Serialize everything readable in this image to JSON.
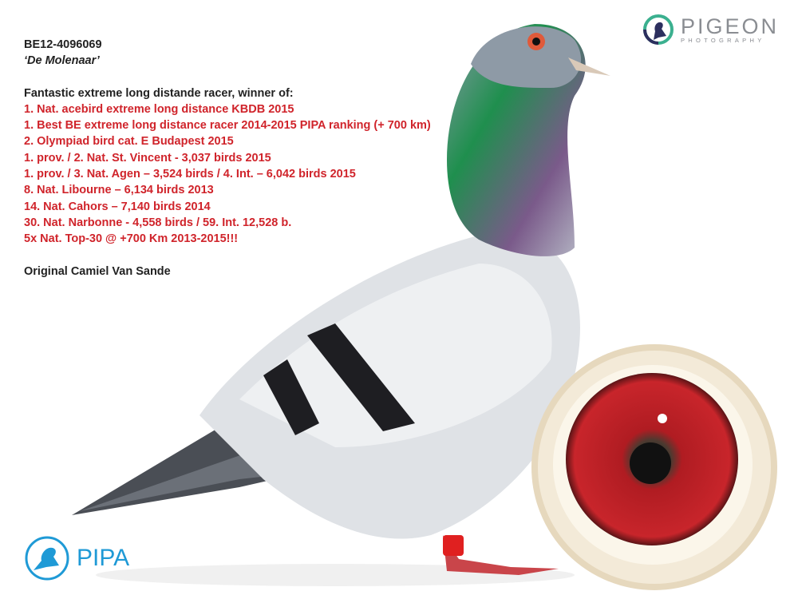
{
  "ring_number": "BE12-4096069",
  "bird_name": "‘De Molenaar’",
  "intro": "Fantastic extreme long distande racer, winner of:",
  "results": [
    "1. Nat. acebird extreme long distance KBDB 2015",
    "1. Best BE extreme long distance racer 2014-2015 PIPA ranking (+ 700 km)",
    "2. Olympiad bird cat. E Budapest 2015",
    "1. prov. / 2. Nat. St. Vincent - 3,037 birds 2015",
    "1. prov. / 3. Nat. Agen – 3,524 birds / 4. Int. – 6,042 birds 2015",
    "8. Nat. Libourne – 6,134 birds 2013",
    "14. Nat. Cahors – 7,140 birds 2014",
    "30. Nat. Narbonne - 4,558 birds / 59. Int. 12,528 b.",
    "5x Nat. Top-30 @ +700 Km 2013-2015!!!"
  ],
  "origin": "Original Camiel Van Sande",
  "logos": {
    "pigeon_photography": {
      "title": "PIGEON",
      "subtitle": "PHOTOGRAPHY"
    },
    "pipa": {
      "title": "PIPA"
    }
  },
  "colors": {
    "accent_red": "#d0242b",
    "pipa_blue": "#1f9ad6",
    "logo_green": "#3bb08f",
    "logo_navy": "#2c2f5e"
  }
}
